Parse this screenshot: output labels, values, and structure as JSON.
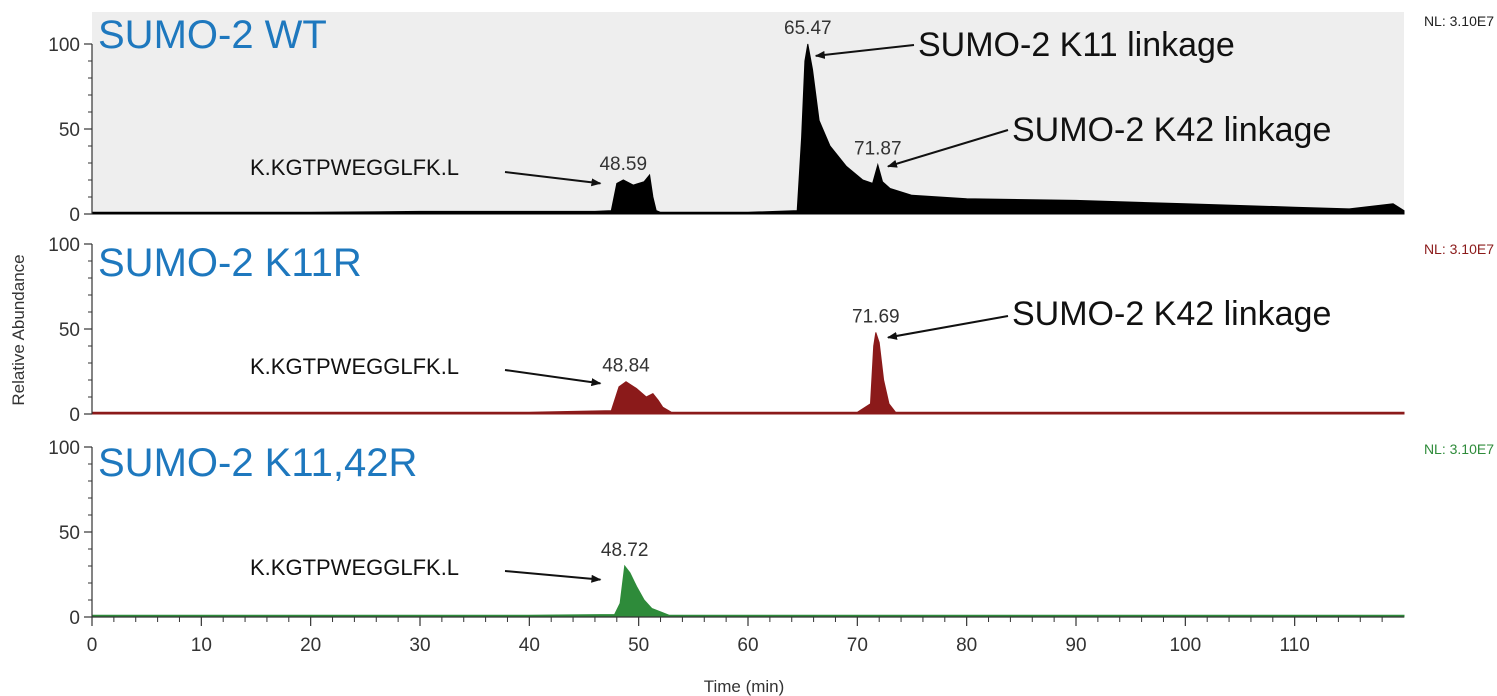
{
  "chart_data": {
    "type": "area",
    "xlabel": "Time (min)",
    "ylabel": "Relative Abundance",
    "xlim": [
      0,
      120
    ],
    "xticks": [
      0,
      10,
      20,
      30,
      40,
      50,
      60,
      70,
      80,
      90,
      100,
      110
    ],
    "ylim": [
      0,
      100
    ],
    "yticks": [
      0,
      50,
      100
    ],
    "grid": false,
    "panels": [
      {
        "title": "SUMO-2 WT",
        "nl": "NL: 3.10E7",
        "color": "#000000",
        "background": "#eeeeee",
        "x": [
          0,
          10,
          20,
          30,
          40,
          46,
          47.5,
          48.0,
          48.59,
          49.5,
          50.5,
          51.0,
          51.3,
          51.6,
          52,
          60,
          64.5,
          64.9,
          65.2,
          65.47,
          65.9,
          66.5,
          67.5,
          69,
          70.5,
          71.4,
          71.87,
          72.3,
          73,
          75,
          80,
          90,
          100,
          105,
          110,
          115,
          119,
          120
        ],
        "values": [
          1,
          1,
          1,
          1.5,
          1.5,
          1.5,
          2,
          18,
          20,
          17,
          19,
          23,
          10,
          2,
          1,
          1,
          2,
          45,
          90,
          100,
          85,
          55,
          40,
          28,
          20,
          18,
          29,
          19,
          15,
          11,
          9,
          8,
          6,
          5,
          4,
          3,
          6,
          2
        ],
        "peaks": [
          {
            "x": 48.59,
            "label": "48.59"
          },
          {
            "x": 65.47,
            "label": "65.47"
          },
          {
            "x": 71.87,
            "label": "71.87"
          }
        ],
        "annotations": [
          {
            "text": "K.KGTPWEGGLFK.L",
            "target_x": 46.5,
            "target_y": 18
          },
          {
            "text": "SUMO-2 K11 linkage",
            "target_x": 66.2,
            "target_y": 93
          },
          {
            "text": "SUMO-2 K42 linkage",
            "target_x": 72.8,
            "target_y": 28
          }
        ]
      },
      {
        "title": "SUMO-2 K11R",
        "nl": "NL: 3.10E7",
        "color": "#8b1a1a",
        "background": "#ffffff",
        "x": [
          0,
          40,
          47.5,
          48.2,
          48.84,
          49.8,
          50.7,
          51.3,
          51.8,
          52.2,
          53,
          70,
          71.2,
          71.5,
          71.69,
          72.0,
          72.4,
          72.9,
          73.5,
          80,
          100,
          120
        ],
        "values": [
          1,
          1,
          2,
          16,
          19,
          15,
          10,
          12,
          8,
          4,
          1,
          1,
          6,
          40,
          48,
          42,
          20,
          6,
          1,
          1,
          1,
          1
        ],
        "peaks": [
          {
            "x": 48.84,
            "label": "48.84"
          },
          {
            "x": 71.69,
            "label": "71.69"
          }
        ],
        "annotations": [
          {
            "text": "K.KGTPWEGGLFK.L",
            "target_x": 46.5,
            "target_y": 18
          },
          {
            "text": "SUMO-2 K42 linkage",
            "target_x": 72.8,
            "target_y": 45
          }
        ]
      },
      {
        "title": "SUMO-2 K11,42R",
        "nl": "NL: 3.10E7",
        "color": "#2e8b3a",
        "background": "#ffffff",
        "x": [
          0,
          40,
          47.8,
          48.3,
          48.72,
          49.2,
          49.8,
          50.5,
          51.2,
          52,
          52.8,
          60,
          100,
          120
        ],
        "values": [
          1,
          1,
          1.5,
          8,
          30,
          26,
          18,
          10,
          5,
          3,
          1,
          1,
          1,
          1
        ],
        "peaks": [
          {
            "x": 48.72,
            "label": "48.72"
          }
        ],
        "annotations": [
          {
            "text": "K.KGTPWEGGLFK.L",
            "target_x": 46.5,
            "target_y": 22
          }
        ]
      }
    ]
  }
}
